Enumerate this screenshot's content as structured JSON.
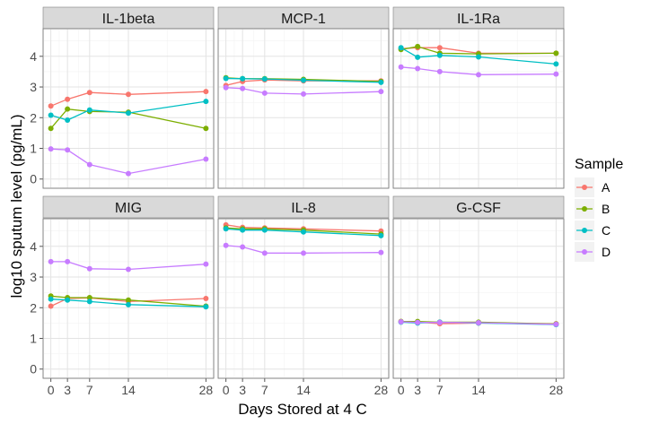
{
  "chart_data": {
    "type": "line",
    "xlabel": "Days Stored at 4 C",
    "ylabel": "log10 sputum level (pg/mL)",
    "x": [
      0,
      3,
      7,
      14,
      28
    ],
    "x_ticks": [
      0,
      3,
      7,
      14,
      28
    ],
    "ylim": [
      -0.3,
      4.9
    ],
    "y_ticks": [
      0,
      1,
      2,
      3,
      4
    ],
    "grid": true,
    "legend": {
      "title": "Sample",
      "placement": "right",
      "items": [
        "A",
        "B",
        "C",
        "D"
      ]
    },
    "colors": {
      "A": "#F8766D",
      "B": "#7CAE00",
      "C": "#00BFC4",
      "D": "#C77CFF"
    },
    "panels": [
      {
        "title": "IL-1beta",
        "series": [
          {
            "name": "A",
            "values": [
              2.38,
              2.6,
              2.82,
              2.76,
              2.85
            ]
          },
          {
            "name": "B",
            "values": [
              1.65,
              2.28,
              2.2,
              2.18,
              1.65
            ]
          },
          {
            "name": "C",
            "values": [
              2.08,
              1.92,
              2.25,
              2.15,
              2.53
            ]
          },
          {
            "name": "D",
            "values": [
              0.98,
              0.95,
              0.47,
              0.18,
              0.65
            ]
          }
        ]
      },
      {
        "title": "MCP-1",
        "series": [
          {
            "name": "A",
            "values": [
              3.05,
              3.18,
              3.23,
              3.2,
              3.2
            ]
          },
          {
            "name": "B",
            "values": [
              3.3,
              3.27,
              3.27,
              3.25,
              3.18
            ]
          },
          {
            "name": "C",
            "values": [
              3.28,
              3.27,
              3.26,
              3.22,
              3.15
            ]
          },
          {
            "name": "D",
            "values": [
              2.98,
              2.95,
              2.8,
              2.77,
              2.85
            ]
          }
        ]
      },
      {
        "title": "IL-1Ra",
        "series": [
          {
            "name": "A",
            "values": [
              4.25,
              4.28,
              4.28,
              4.1,
              4.1
            ]
          },
          {
            "name": "B",
            "values": [
              4.22,
              4.32,
              4.1,
              4.08,
              4.1
            ]
          },
          {
            "name": "C",
            "values": [
              4.28,
              3.97,
              4.03,
              3.98,
              3.75
            ]
          },
          {
            "name": "D",
            "values": [
              3.65,
              3.6,
              3.5,
              3.4,
              3.42
            ]
          }
        ]
      },
      {
        "title": "MIG",
        "series": [
          {
            "name": "A",
            "values": [
              2.05,
              2.3,
              2.32,
              2.2,
              2.3
            ]
          },
          {
            "name": "B",
            "values": [
              2.38,
              2.33,
              2.33,
              2.25,
              2.05
            ]
          },
          {
            "name": "C",
            "values": [
              2.28,
              2.25,
              2.2,
              2.1,
              2.03
            ]
          },
          {
            "name": "D",
            "values": [
              3.5,
              3.5,
              3.27,
              3.25,
              3.42
            ]
          }
        ]
      },
      {
        "title": "IL-8",
        "series": [
          {
            "name": "A",
            "values": [
              4.7,
              4.62,
              4.6,
              4.57,
              4.5
            ]
          },
          {
            "name": "B",
            "values": [
              4.6,
              4.57,
              4.57,
              4.53,
              4.4
            ]
          },
          {
            "name": "C",
            "values": [
              4.57,
              4.53,
              4.53,
              4.47,
              4.35
            ]
          },
          {
            "name": "D",
            "values": [
              4.03,
              3.98,
              3.78,
              3.78,
              3.8
            ]
          }
        ]
      },
      {
        "title": "G-CSF",
        "series": [
          {
            "name": "A",
            "values": [
              1.55,
              1.53,
              1.48,
              1.5,
              1.48
            ]
          },
          {
            "name": "B",
            "values": [
              1.55,
              1.55,
              1.53,
              1.53,
              1.47
            ]
          },
          {
            "name": "C",
            "values": [
              1.53,
              1.5,
              1.53,
              1.5,
              1.45
            ]
          },
          {
            "name": "D",
            "values": [
              1.54,
              1.52,
              1.52,
              1.51,
              1.46
            ]
          }
        ]
      }
    ]
  }
}
